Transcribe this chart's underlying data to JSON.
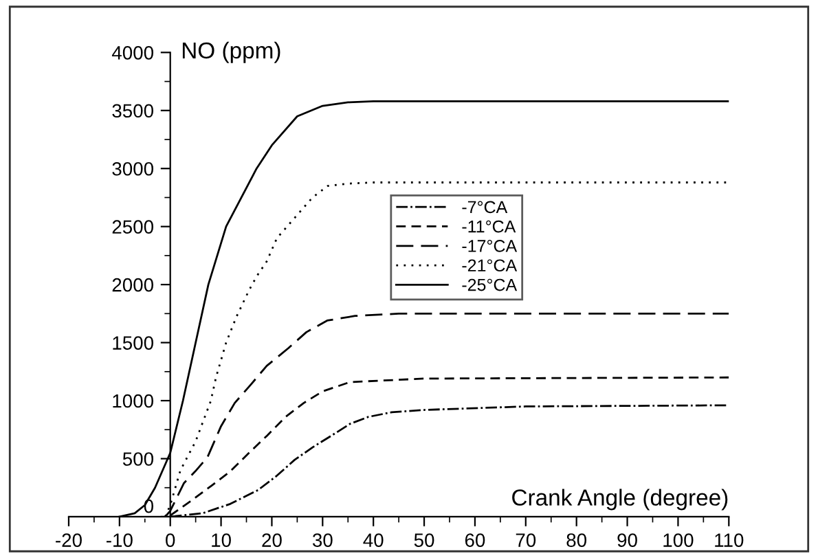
{
  "chart_data": {
    "type": "line",
    "xlabel": "Crank Angle (degree)",
    "ylabel": "NO (ppm)",
    "xlim": [
      -20,
      110
    ],
    "ylim": [
      0,
      4000
    ],
    "xticks": [
      -20,
      -10,
      0,
      10,
      20,
      30,
      40,
      50,
      60,
      70,
      80,
      90,
      100,
      110
    ],
    "yticks": [
      0,
      500,
      1000,
      1500,
      2000,
      2500,
      3000,
      3500,
      4000
    ],
    "grid": false,
    "legend": "center right",
    "marker": "none",
    "series": [
      {
        "name": "-7°CA",
        "color": "#000000",
        "line_style": "dashdot",
        "x": [
          0,
          6.4,
          11.8,
          17.3,
          20.9,
          24.5,
          28.1,
          31.8,
          35.4,
          39,
          43.6,
          50,
          70,
          110
        ],
        "values": [
          0,
          30,
          110,
          230,
          350,
          490,
          600,
          700,
          800,
          860,
          900,
          920,
          950,
          960
        ]
      },
      {
        "name": "-11°CA",
        "color": "#000000",
        "line_style": "dashed",
        "x": [
          0,
          4.5,
          8.2,
          11.8,
          15.5,
          19.1,
          22.7,
          26.3,
          30,
          35.4,
          50,
          110
        ],
        "values": [
          10,
          150,
          270,
          390,
          550,
          700,
          860,
          980,
          1080,
          1160,
          1190,
          1200
        ]
      },
      {
        "name": "-17°CA",
        "color": "#000000",
        "line_style": "longdash",
        "x": [
          -1,
          0,
          2.7,
          4.9,
          7.3,
          10,
          12.7,
          15.9,
          19,
          23.2,
          26.8,
          30.9,
          36.4,
          45,
          110
        ],
        "values": [
          0,
          50,
          290,
          390,
          510,
          780,
          980,
          1140,
          1300,
          1450,
          1590,
          1690,
          1730,
          1750,
          1750
        ]
      },
      {
        "name": "-21°CA",
        "color": "#000000",
        "line_style": "dotted",
        "x": [
          -1,
          0,
          2,
          5,
          8,
          9,
          11,
          13,
          15.5,
          17,
          19,
          21,
          23,
          25,
          28,
          31,
          35,
          40,
          110
        ],
        "values": [
          0,
          100,
          400,
          650,
          1000,
          1200,
          1500,
          1720,
          1950,
          2070,
          2200,
          2400,
          2500,
          2600,
          2750,
          2850,
          2870,
          2880,
          2880
        ]
      },
      {
        "name": "-25°CA",
        "color": "#000000",
        "line_style": "solid",
        "x": [
          -10,
          -7,
          -5,
          -3,
          0,
          2.5,
          5,
          7.5,
          11,
          17,
          20,
          25,
          30,
          35,
          40,
          110
        ],
        "values": [
          0,
          30,
          100,
          250,
          550,
          1000,
          1500,
          2000,
          2500,
          3000,
          3200,
          3450,
          3540,
          3570,
          3580,
          3580
        ]
      }
    ]
  }
}
